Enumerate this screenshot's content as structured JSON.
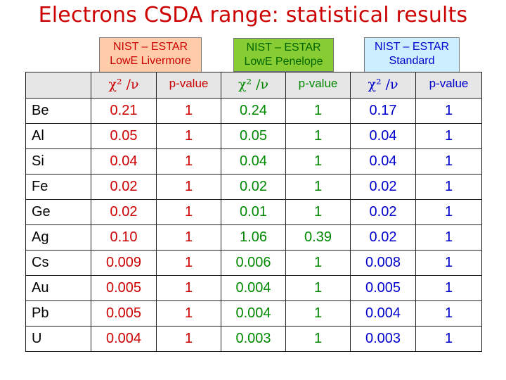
{
  "title": "Electrons CSDA range: statistical results",
  "sources": {
    "livermore": {
      "line1": "NIST – ESTAR",
      "line2": "LowE Livermore"
    },
    "penelope": {
      "line1": "NIST – ESTAR",
      "line2": "LowE Penelope"
    },
    "standard": {
      "line1": "NIST – ESTAR",
      "line2": "Standard"
    }
  },
  "headers": {
    "chi": "χ² /ν",
    "pvalue": "p-value"
  },
  "colors": {
    "livermore": "#cc0000",
    "penelope": "#008800",
    "standard": "#0000cc"
  },
  "rows": [
    {
      "element": "Be",
      "liv_chi": "0.21",
      "liv_p": "1",
      "pen_chi": "0.24",
      "pen_p": "1",
      "std_chi": "0.17",
      "std_p": "1"
    },
    {
      "element": "Al",
      "liv_chi": "0.05",
      "liv_p": "1",
      "pen_chi": "0.05",
      "pen_p": "1",
      "std_chi": "0.04",
      "std_p": "1"
    },
    {
      "element": "Si",
      "liv_chi": "0.04",
      "liv_p": "1",
      "pen_chi": "0.04",
      "pen_p": "1",
      "std_chi": "0.04",
      "std_p": "1"
    },
    {
      "element": "Fe",
      "liv_chi": "0.02",
      "liv_p": "1",
      "pen_chi": "0.02",
      "pen_p": "1",
      "std_chi": "0.02",
      "std_p": "1"
    },
    {
      "element": "Ge",
      "liv_chi": "0.02",
      "liv_p": "1",
      "pen_chi": "0.01",
      "pen_p": "1",
      "std_chi": "0.02",
      "std_p": "1"
    },
    {
      "element": "Ag",
      "liv_chi": "0.10",
      "liv_p": "1",
      "pen_chi": "1.06",
      "pen_p": "0.39",
      "std_chi": "0.02",
      "std_p": "1"
    },
    {
      "element": "Cs",
      "liv_chi": "0.009",
      "liv_p": "1",
      "pen_chi": "0.006",
      "pen_p": "1",
      "std_chi": "0.008",
      "std_p": "1"
    },
    {
      "element": "Au",
      "liv_chi": "0.005",
      "liv_p": "1",
      "pen_chi": "0.004",
      "pen_p": "1",
      "std_chi": "0.005",
      "std_p": "1"
    },
    {
      "element": "Pb",
      "liv_chi": "0.005",
      "liv_p": "1",
      "pen_chi": "0.004",
      "pen_p": "1",
      "std_chi": "0.004",
      "std_p": "1"
    },
    {
      "element": "U",
      "liv_chi": "0.004",
      "liv_p": "1",
      "pen_chi": "0.003",
      "pen_p": "1",
      "std_chi": "0.003",
      "std_p": "1"
    }
  ]
}
